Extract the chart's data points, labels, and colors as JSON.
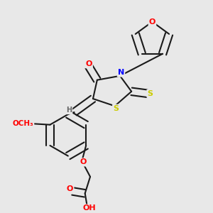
{
  "background_color": "#e8e8e8",
  "bond_color": "#1a1a1a",
  "atom_colors": {
    "O": "#ff0000",
    "N": "#0000ff",
    "S": "#cccc00",
    "H": "#666666",
    "C": "#1a1a1a"
  },
  "figure_size": [
    3.0,
    3.0
  ],
  "dpi": 100
}
